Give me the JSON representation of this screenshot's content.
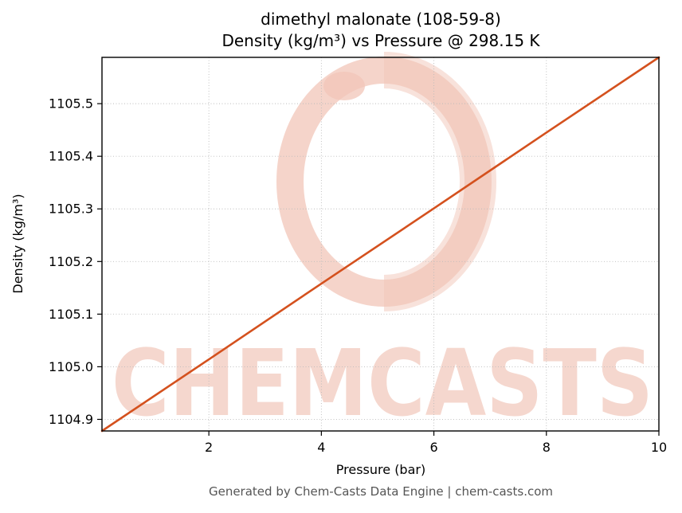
{
  "page": {
    "title_line1": "dimethyl malonate (108-59-8)",
    "title_line2": "Density (kg/m³) vs Pressure @ 298.15 K",
    "footer": "Generated by Chem-Casts Data Engine | chem-casts.com",
    "watermark": "CHEMCASTS"
  },
  "chart_data": {
    "type": "line",
    "title": "dimethyl malonate (108-59-8) Density (kg/m³) vs Pressure @ 298.15 K",
    "xlabel": "Pressure (bar)",
    "ylabel": "Density (kg/m³)",
    "xlim": [
      0.1,
      10
    ],
    "ylim": [
      1104.878,
      1105.588
    ],
    "xticks": [
      2,
      4,
      6,
      8,
      10
    ],
    "yticks": [
      1104.9,
      1105.0,
      1105.1,
      1105.2,
      1105.3,
      1105.4,
      1105.5
    ],
    "grid": true,
    "grid_style": "dotted",
    "legend": "none",
    "line_color": "#d4511e",
    "watermark_color": "#f4d3c9",
    "series": [
      {
        "name": "Density",
        "x": [
          0.1,
          2,
          4,
          6,
          8,
          10
        ],
        "y": [
          1104.878,
          1105.014,
          1105.158,
          1105.301,
          1105.445,
          1105.588
        ]
      }
    ]
  }
}
